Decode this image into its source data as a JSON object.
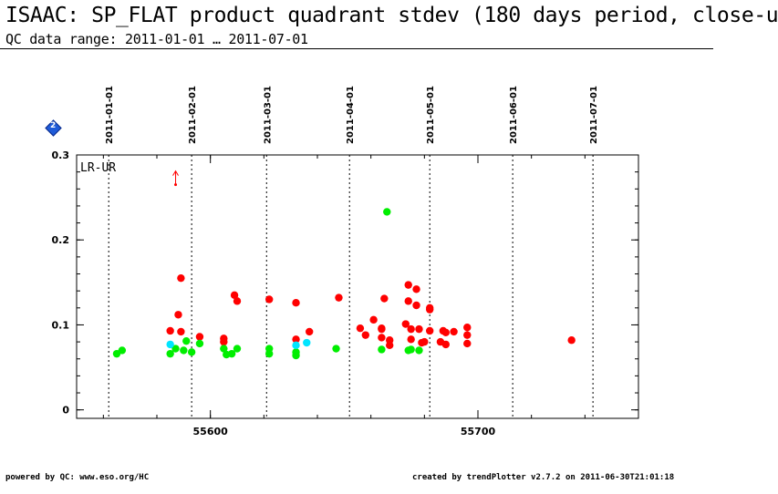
{
  "header": {
    "title": "ISAAC: SP_FLAT product quadrant stdev (180 days period, close-u",
    "subtitle": "QC data range: 2011-01-01 … 2011-07-01"
  },
  "footer": {
    "left": "powered by QC: www.eso.org/HC",
    "right": "created by trendPlotter v2.7.2 on 2011-06-30T21:01:18"
  },
  "badge": {
    "label": "2",
    "icon": "info-diamond-icon",
    "color": "#1f5bd8"
  },
  "chart_data": {
    "type": "scatter",
    "panel_label": "LR-UR",
    "xlim": [
      55550,
      55760
    ],
    "ylim": [
      -0.01,
      0.3
    ],
    "y_ticks": [
      0,
      0.1,
      0.2,
      0.3
    ],
    "y_tick_labels": [
      "0",
      "0.1",
      "0.2",
      "0.3"
    ],
    "x_ticks": [
      55600,
      55700
    ],
    "x_tick_labels": [
      "55600",
      "55700"
    ],
    "date_markers": [
      {
        "label": "2011-01-01",
        "x": 55562
      },
      {
        "label": "2011-02-01",
        "x": 55593
      },
      {
        "label": "2011-03-01",
        "x": 55621
      },
      {
        "label": "2011-04-01",
        "x": 55652
      },
      {
        "label": "2011-05-01",
        "x": 55682
      },
      {
        "label": "2011-06-01",
        "x": 55713
      },
      {
        "label": "2011-07-01",
        "x": 55743
      }
    ],
    "outlier_arrow": {
      "x": 55587,
      "y": 0.265,
      "color": "#ff0000"
    },
    "series": [
      {
        "color": "#ff0000",
        "points": [
          [
            55585,
            0.093
          ],
          [
            55588,
            0.112
          ],
          [
            55589,
            0.092
          ],
          [
            55589,
            0.155
          ],
          [
            55596,
            0.086
          ],
          [
            55605,
            0.084
          ],
          [
            55605,
            0.08
          ],
          [
            55609,
            0.135
          ],
          [
            55610,
            0.128
          ],
          [
            55622,
            0.13
          ],
          [
            55632,
            0.126
          ],
          [
            55632,
            0.083
          ],
          [
            55637,
            0.092
          ],
          [
            55648,
            0.132
          ],
          [
            55656,
            0.096
          ],
          [
            55658,
            0.088
          ],
          [
            55661,
            0.106
          ],
          [
            55664,
            0.095
          ],
          [
            55664,
            0.085
          ],
          [
            55664,
            0.096
          ],
          [
            55665,
            0.131
          ],
          [
            55667,
            0.082
          ],
          [
            55667,
            0.076
          ],
          [
            55673,
            0.101
          ],
          [
            55674,
            0.147
          ],
          [
            55674,
            0.128
          ],
          [
            55675,
            0.095
          ],
          [
            55675,
            0.083
          ],
          [
            55677,
            0.142
          ],
          [
            55677,
            0.123
          ],
          [
            55678,
            0.095
          ],
          [
            55679,
            0.079
          ],
          [
            55680,
            0.08
          ],
          [
            55682,
            0.12
          ],
          [
            55682,
            0.118
          ],
          [
            55682,
            0.093
          ],
          [
            55686,
            0.08
          ],
          [
            55687,
            0.093
          ],
          [
            55688,
            0.091
          ],
          [
            55688,
            0.077
          ],
          [
            55691,
            0.092
          ],
          [
            55696,
            0.097
          ],
          [
            55696,
            0.088
          ],
          [
            55696,
            0.078
          ],
          [
            55735,
            0.082
          ]
        ]
      },
      {
        "color": "#00ee00",
        "points": [
          [
            55565,
            0.066
          ],
          [
            55567,
            0.07
          ],
          [
            55585,
            0.066
          ],
          [
            55587,
            0.072
          ],
          [
            55590,
            0.07
          ],
          [
            55591,
            0.081
          ],
          [
            55593,
            0.068
          ],
          [
            55596,
            0.078
          ],
          [
            55605,
            0.072
          ],
          [
            55606,
            0.065
          ],
          [
            55608,
            0.066
          ],
          [
            55610,
            0.072
          ],
          [
            55622,
            0.066
          ],
          [
            55622,
            0.072
          ],
          [
            55632,
            0.068
          ],
          [
            55632,
            0.064
          ],
          [
            55647,
            0.072
          ],
          [
            55664,
            0.071
          ],
          [
            55666,
            0.233
          ],
          [
            55674,
            0.07
          ],
          [
            55675,
            0.071
          ],
          [
            55678,
            0.07
          ]
        ]
      },
      {
        "color": "#00e5ff",
        "points": [
          [
            55585,
            0.077
          ],
          [
            55632,
            0.076
          ],
          [
            55636,
            0.079
          ]
        ]
      }
    ]
  }
}
